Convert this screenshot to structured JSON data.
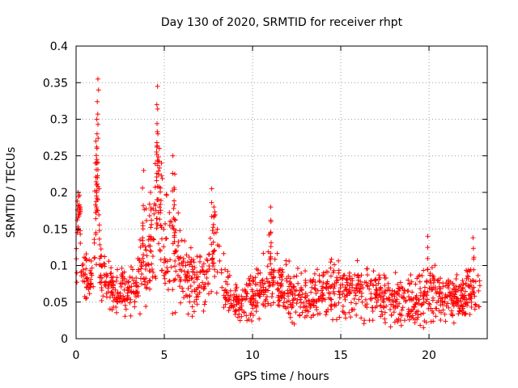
{
  "chart_data": {
    "type": "scatter",
    "title": "Day 130 of 2020, SRMTID for receiver rhpt",
    "xlabel": "GPS time / hours",
    "ylabel": "SRMTID / TECUs",
    "xlim": [
      0,
      23.3
    ],
    "ylim": [
      0,
      0.4
    ],
    "xticks": [
      0,
      5,
      10,
      15,
      20
    ],
    "yticks": [
      0,
      0.05,
      0.1,
      0.15,
      0.2,
      0.25,
      0.3,
      0.35,
      0.4
    ],
    "xtick_labels": [
      "0",
      "5",
      "10",
      "15",
      "20"
    ],
    "ytick_labels": [
      "0",
      "0.05",
      "0.1",
      "0.15",
      "0.2",
      "0.25",
      "0.3",
      "0.35",
      "0.4"
    ],
    "grid": true,
    "marker": "+",
    "marker_color": "#ff0000",
    "x_end_hours": 22.9,
    "series_envelope": [
      [
        0.0,
        0.06,
        0.03
      ],
      [
        0.1,
        0.17,
        0.02
      ],
      [
        0.2,
        0.17,
        0.02
      ],
      [
        0.3,
        0.1,
        0.02
      ],
      [
        0.5,
        0.09,
        0.02
      ],
      [
        0.8,
        0.08,
        0.02
      ],
      [
        1.0,
        0.09,
        0.02
      ],
      [
        1.2,
        0.2,
        0.08
      ],
      [
        1.4,
        0.1,
        0.03
      ],
      [
        1.7,
        0.07,
        0.02
      ],
      [
        2.0,
        0.07,
        0.02
      ],
      [
        2.5,
        0.065,
        0.02
      ],
      [
        3.0,
        0.065,
        0.02
      ],
      [
        3.5,
        0.07,
        0.02
      ],
      [
        3.8,
        0.11,
        0.04
      ],
      [
        4.2,
        0.12,
        0.04
      ],
      [
        4.6,
        0.19,
        0.07
      ],
      [
        5.0,
        0.12,
        0.04
      ],
      [
        5.5,
        0.13,
        0.05
      ],
      [
        6.0,
        0.08,
        0.03
      ],
      [
        6.5,
        0.08,
        0.03
      ],
      [
        7.0,
        0.08,
        0.03
      ],
      [
        7.5,
        0.09,
        0.03
      ],
      [
        7.8,
        0.12,
        0.04
      ],
      [
        8.2,
        0.08,
        0.03
      ],
      [
        8.6,
        0.06,
        0.02
      ],
      [
        9.0,
        0.05,
        0.015
      ],
      [
        9.5,
        0.045,
        0.015
      ],
      [
        10.0,
        0.06,
        0.02
      ],
      [
        10.5,
        0.065,
        0.02
      ],
      [
        11.0,
        0.09,
        0.03
      ],
      [
        11.5,
        0.07,
        0.02
      ],
      [
        12.0,
        0.065,
        0.02
      ],
      [
        13.0,
        0.055,
        0.02
      ],
      [
        14.0,
        0.06,
        0.02
      ],
      [
        14.5,
        0.065,
        0.025
      ],
      [
        15.0,
        0.07,
        0.025
      ],
      [
        16.0,
        0.065,
        0.025
      ],
      [
        17.0,
        0.06,
        0.02
      ],
      [
        17.5,
        0.055,
        0.02
      ],
      [
        18.0,
        0.055,
        0.02
      ],
      [
        18.5,
        0.05,
        0.02
      ],
      [
        19.0,
        0.05,
        0.02
      ],
      [
        19.5,
        0.06,
        0.025
      ],
      [
        20.0,
        0.065,
        0.025
      ],
      [
        20.5,
        0.06,
        0.02
      ],
      [
        21.0,
        0.06,
        0.02
      ],
      [
        21.5,
        0.055,
        0.02
      ],
      [
        22.0,
        0.055,
        0.02
      ],
      [
        22.5,
        0.065,
        0.025
      ],
      [
        22.9,
        0.06,
        0.02
      ]
    ],
    "peaks": [
      {
        "x": 0.1,
        "y": 0.2
      },
      {
        "x": 0.2,
        "y": 0.18
      },
      {
        "x": 1.2,
        "y": 0.355
      },
      {
        "x": 1.25,
        "y": 0.34
      },
      {
        "x": 1.2,
        "y": 0.3
      },
      {
        "x": 1.15,
        "y": 0.27
      },
      {
        "x": 1.1,
        "y": 0.24
      },
      {
        "x": 1.15,
        "y": 0.21
      },
      {
        "x": 3.8,
        "y": 0.23
      },
      {
        "x": 4.2,
        "y": 0.2
      },
      {
        "x": 4.6,
        "y": 0.345
      },
      {
        "x": 4.6,
        "y": 0.32
      },
      {
        "x": 4.6,
        "y": 0.28
      },
      {
        "x": 4.7,
        "y": 0.26
      },
      {
        "x": 4.8,
        "y": 0.24
      },
      {
        "x": 5.5,
        "y": 0.25
      },
      {
        "x": 5.6,
        "y": 0.225
      },
      {
        "x": 7.7,
        "y": 0.205
      },
      {
        "x": 7.8,
        "y": 0.18
      },
      {
        "x": 11.0,
        "y": 0.18
      },
      {
        "x": 11.05,
        "y": 0.16
      },
      {
        "x": 19.9,
        "y": 0.14
      },
      {
        "x": 22.5,
        "y": 0.138
      }
    ]
  }
}
